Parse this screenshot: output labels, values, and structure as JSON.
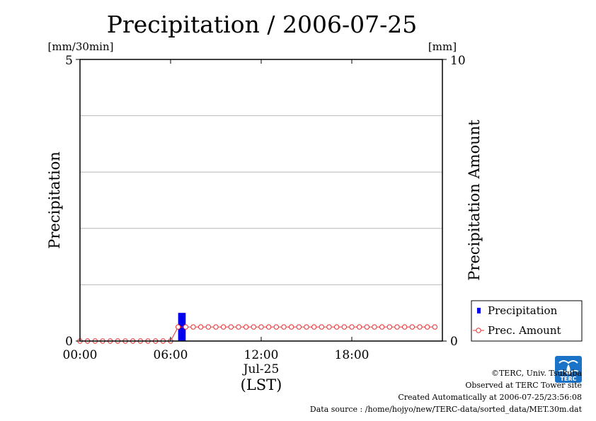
{
  "chart_data": {
    "type": "bar+line",
    "title": "Precipitation / 2006-07-25",
    "left_axis": {
      "label": "Precipitation",
      "unit": "[mm/30min]",
      "ylim": [
        0,
        5
      ],
      "ticks": [
        0,
        1,
        2,
        3,
        4,
        5
      ],
      "tick_labels": [
        "0",
        "5"
      ]
    },
    "right_axis": {
      "label": "Precipitation Amount",
      "unit": "[mm]",
      "ylim": [
        0,
        10
      ],
      "tick_labels": [
        "0",
        "10"
      ]
    },
    "x_axis": {
      "range_hours": [
        0,
        24
      ],
      "tick_hours": [
        0,
        6,
        12,
        18
      ],
      "tick_labels": [
        "00:00",
        "06:00",
        "12:00",
        "18:00"
      ],
      "date_label": "Jul-25",
      "label": "(LST)"
    },
    "grid": true,
    "legend_placement": "bottom-right outside",
    "series": [
      {
        "name": "Precipitation",
        "kind": "bar",
        "axis": "left",
        "color": "#0000ee",
        "bars": [
          {
            "start_hour": 6.5,
            "end_hour": 7.0,
            "value": 0.5
          }
        ]
      },
      {
        "name": "Prec. Amount",
        "kind": "line",
        "axis": "right",
        "color": "#e83030",
        "marker": "open-circle",
        "start_hour": 0,
        "interval_hour": 0.5,
        "values": [
          0,
          0,
          0,
          0,
          0,
          0,
          0,
          0,
          0,
          0,
          0,
          0,
          0,
          0.5,
          0.5,
          0.5,
          0.5,
          0.5,
          0.5,
          0.5,
          0.5,
          0.5,
          0.5,
          0.5,
          0.5,
          0.5,
          0.5,
          0.5,
          0.5,
          0.5,
          0.5,
          0.5,
          0.5,
          0.5,
          0.5,
          0.5,
          0.5,
          0.5,
          0.5,
          0.5,
          0.5,
          0.5,
          0.5,
          0.5,
          0.5,
          0.5,
          0.5,
          0.5
        ]
      }
    ]
  },
  "footer": {
    "copyright": "©TERC, Univ. Tsukuba",
    "site": "Observed at TERC Tower site",
    "created": "Created Automatically at 2006-07-25/23:56:08",
    "source": "Data source : /home/hojyo/new/TERC-data/sorted_data/MET.30m.dat"
  },
  "logo": {
    "text": "TERC",
    "color": "#1a73c6"
  }
}
